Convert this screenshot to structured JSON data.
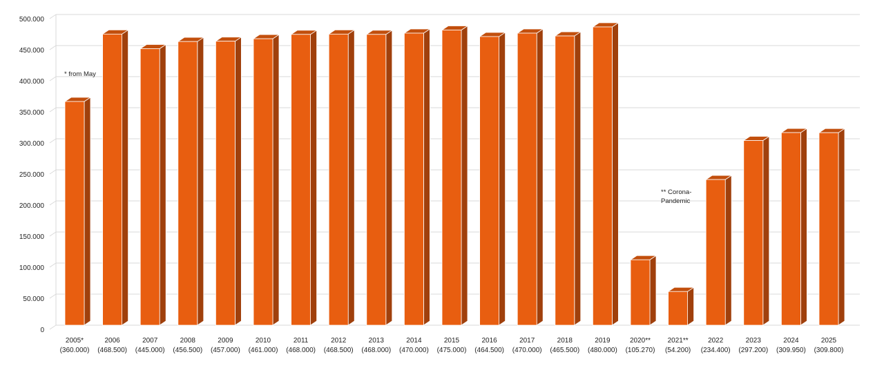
{
  "chart_data": {
    "type": "bar",
    "categories": [
      "2005*",
      "2006",
      "2007",
      "2008",
      "2009",
      "2010",
      "2011",
      "2012",
      "2013",
      "2014",
      "2015",
      "2016",
      "2017",
      "2018",
      "2019",
      "2020**",
      "2021**",
      "2022",
      "2023",
      "2024",
      "2025"
    ],
    "value_labels": [
      "(360.000)",
      "(468.500)",
      "(445.000)",
      "(456.500)",
      "(457.000)",
      "(461.000)",
      "(468.000)",
      "(468.500)",
      "(468.000)",
      "(470.000)",
      "(475.000)",
      "(464.500)",
      "(470.000)",
      "(465.500)",
      "(480.000)",
      "(105.270)",
      "(54.200)",
      "(234.400)",
      "(297.200)",
      "(309.950)",
      "(309.800)"
    ],
    "values": [
      360000,
      468500,
      445000,
      456500,
      457000,
      461000,
      468000,
      468500,
      468000,
      470000,
      475000,
      464500,
      470000,
      465500,
      480000,
      105270,
      54200,
      234400,
      297200,
      309950,
      309800
    ],
    "ylim": [
      0,
      500000
    ],
    "yticks": [
      0,
      50000,
      100000,
      150000,
      200000,
      250000,
      300000,
      350000,
      400000,
      450000,
      500000
    ],
    "ytick_labels": [
      "0",
      "50.000",
      "100.000",
      "150.000",
      "200.000",
      "250.000",
      "300.000",
      "350.000",
      "400.000",
      "450.000",
      "500.000"
    ],
    "grid": true,
    "title": "",
    "xlabel": "",
    "ylabel": "",
    "annotations": [
      {
        "text": "* from May",
        "near_category": "2006"
      },
      {
        "text": "** Corona-",
        "near_category": "2021**"
      },
      {
        "text": "Pandemic",
        "near_category": "2021**"
      }
    ],
    "colors": {
      "bar_front": "#e85e10",
      "bar_side": "#a0400c",
      "bar_top": "#c24f0d",
      "bar_edge": "#ffffff"
    }
  }
}
